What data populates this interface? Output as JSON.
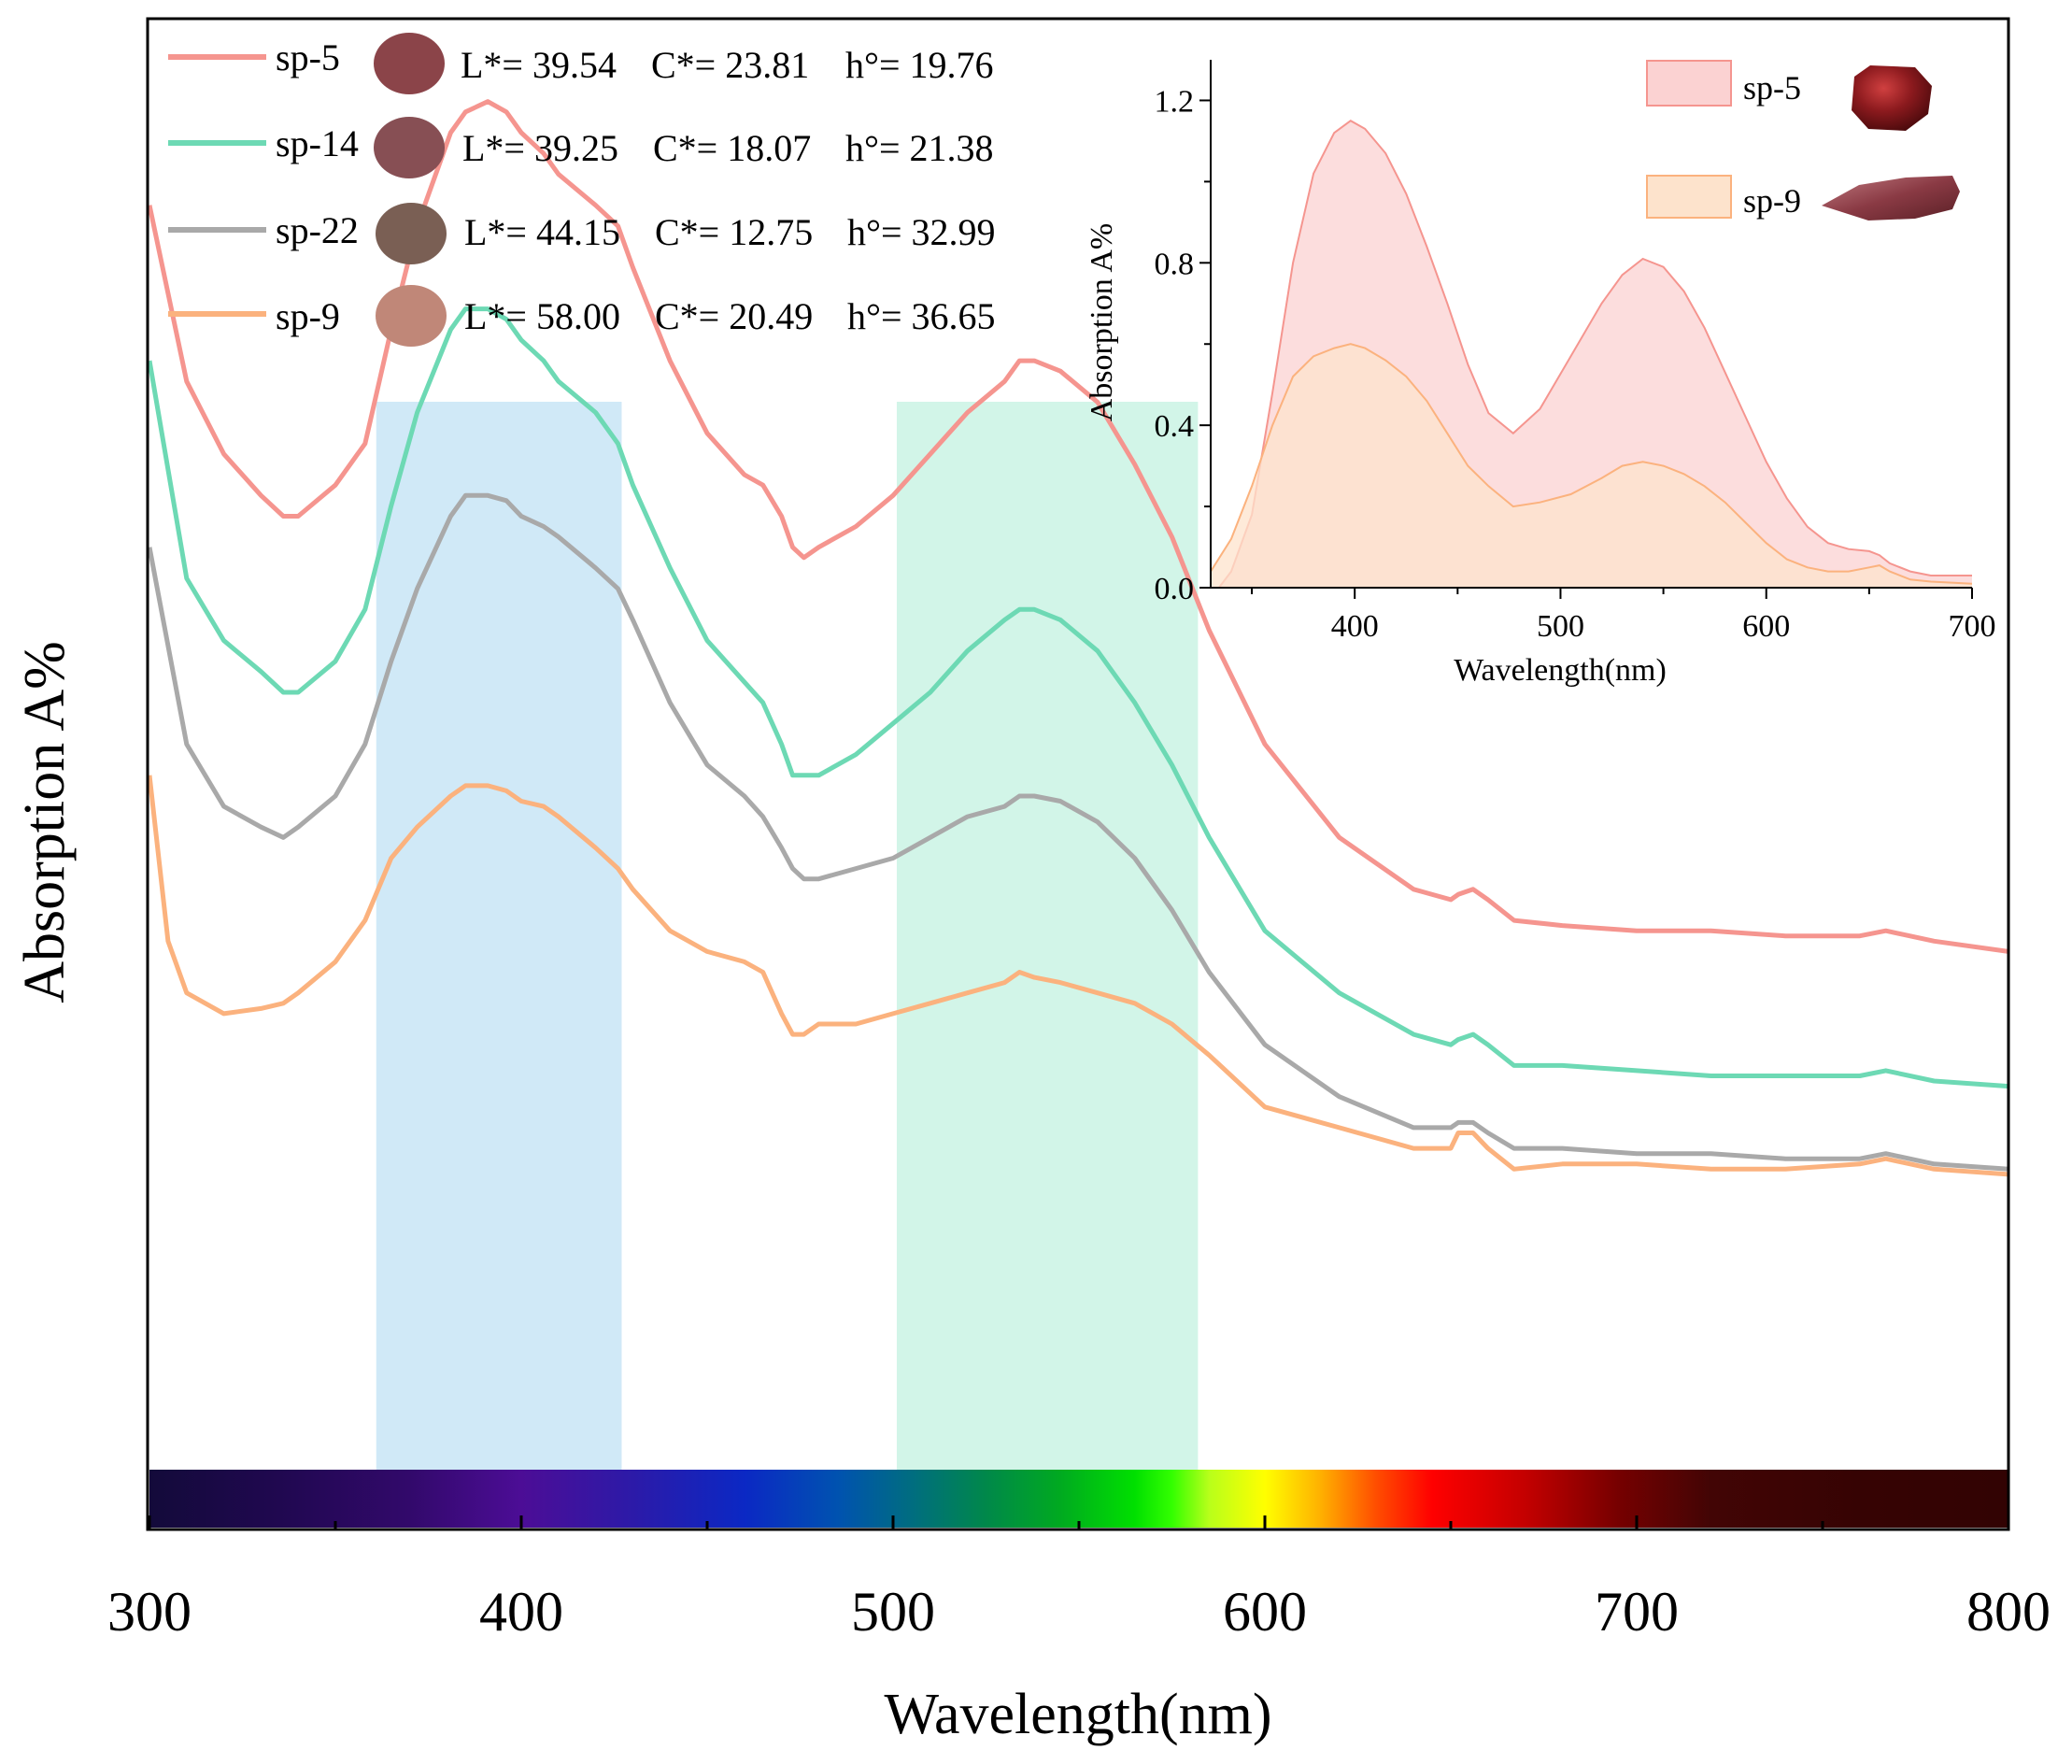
{
  "chart_data": [
    {
      "type": "line",
      "role": "main",
      "xlabel": "Wavelength(nm)",
      "ylabel": "Absorption A%",
      "xlim": [
        300,
        800
      ],
      "ylim": [
        0,
        1.4
      ],
      "x_ticks": [
        "300",
        "400",
        "500",
        "600",
        "700",
        "800"
      ],
      "y_ticks_shown": false,
      "highlight_bands": [
        {
          "name": "band-blue",
          "x0": 361,
          "x1": 427,
          "color": "#d0e9f7"
        },
        {
          "name": "band-green",
          "x0": 501,
          "x1": 582,
          "color": "#d2f5e8"
        }
      ],
      "spectrum_bar": {
        "range": [
          300,
          800
        ]
      },
      "legend": {
        "position": "top-left",
        "entries": [
          {
            "name": "sp-5",
            "color": "#f5958f",
            "swatch": "#8b4449",
            "L": "L*= 39.54",
            "C": "C*= 23.81",
            "h": "h°= 19.76"
          },
          {
            "name": "sp-14",
            "color": "#6dd9b4",
            "swatch": "#874f54",
            "L": "L*= 39.25",
            "C": "C*= 18.07",
            "h": "h°= 21.38"
          },
          {
            "name": "sp-22",
            "color": "#a9a9a9",
            "swatch": "#7a5f54",
            "L": "L*= 44.15",
            "C": "C*= 12.75",
            "h": "h°= 32.99"
          },
          {
            "name": "sp-9",
            "color": "#fbb27e",
            "swatch": "#c08778",
            "L": "L*= 58.00",
            "C": "C*= 20.49",
            "h": "h°= 36.65"
          }
        ]
      },
      "series": [
        {
          "name": "sp-5",
          "color": "#f5958f",
          "x": [
            300,
            310,
            320,
            330,
            336,
            340,
            350,
            358,
            365,
            372,
            381,
            385,
            391,
            396,
            400,
            406,
            410,
            420,
            426,
            430,
            440,
            450,
            460,
            465,
            470,
            473,
            476,
            480,
            490,
            500,
            510,
            520,
            530,
            534,
            538,
            545,
            555,
            565,
            575,
            585,
            600,
            620,
            640,
            650,
            652,
            656,
            660,
            667,
            680,
            700,
            720,
            740,
            760,
            767,
            780,
            800
          ],
          "y": [
            1.22,
            1.05,
            0.98,
            0.94,
            0.92,
            0.92,
            0.95,
            0.99,
            1.1,
            1.2,
            1.29,
            1.31,
            1.32,
            1.31,
            1.29,
            1.27,
            1.25,
            1.22,
            1.2,
            1.16,
            1.07,
            1.0,
            0.96,
            0.95,
            0.92,
            0.89,
            0.88,
            0.89,
            0.91,
            0.94,
            0.98,
            1.02,
            1.05,
            1.07,
            1.07,
            1.06,
            1.03,
            0.97,
            0.9,
            0.81,
            0.7,
            0.61,
            0.56,
            0.55,
            0.555,
            0.56,
            0.55,
            0.53,
            0.525,
            0.52,
            0.52,
            0.515,
            0.515,
            0.52,
            0.51,
            0.5
          ]
        },
        {
          "name": "sp-14",
          "color": "#6dd9b4",
          "x": [
            300,
            310,
            320,
            330,
            336,
            340,
            350,
            358,
            365,
            372,
            381,
            385,
            391,
            396,
            400,
            406,
            410,
            420,
            426,
            430,
            440,
            450,
            460,
            465,
            470,
            473,
            476,
            480,
            490,
            500,
            510,
            520,
            530,
            534,
            538,
            545,
            555,
            565,
            575,
            585,
            600,
            620,
            640,
            650,
            652,
            656,
            660,
            667,
            680,
            700,
            720,
            740,
            760,
            767,
            780,
            800
          ],
          "y": [
            1.07,
            0.86,
            0.8,
            0.77,
            0.75,
            0.75,
            0.78,
            0.83,
            0.93,
            1.02,
            1.1,
            1.12,
            1.12,
            1.11,
            1.09,
            1.07,
            1.05,
            1.02,
            0.99,
            0.95,
            0.87,
            0.8,
            0.76,
            0.74,
            0.7,
            0.67,
            0.67,
            0.67,
            0.69,
            0.72,
            0.75,
            0.79,
            0.82,
            0.83,
            0.83,
            0.82,
            0.79,
            0.74,
            0.68,
            0.61,
            0.52,
            0.46,
            0.42,
            0.41,
            0.415,
            0.42,
            0.41,
            0.39,
            0.39,
            0.385,
            0.38,
            0.38,
            0.38,
            0.385,
            0.375,
            0.37
          ]
        },
        {
          "name": "sp-22",
          "color": "#a9a9a9",
          "x": [
            300,
            310,
            320,
            330,
            336,
            340,
            350,
            358,
            365,
            372,
            381,
            385,
            391,
            396,
            400,
            406,
            410,
            420,
            426,
            430,
            440,
            450,
            460,
            465,
            470,
            473,
            476,
            480,
            490,
            500,
            510,
            520,
            530,
            534,
            538,
            545,
            555,
            565,
            575,
            585,
            600,
            620,
            640,
            650,
            652,
            656,
            660,
            667,
            680,
            700,
            720,
            740,
            760,
            767,
            780,
            800
          ],
          "y": [
            0.89,
            0.7,
            0.64,
            0.62,
            0.61,
            0.62,
            0.65,
            0.7,
            0.78,
            0.85,
            0.92,
            0.94,
            0.94,
            0.935,
            0.92,
            0.91,
            0.9,
            0.87,
            0.85,
            0.82,
            0.74,
            0.68,
            0.65,
            0.63,
            0.6,
            0.58,
            0.57,
            0.57,
            0.58,
            0.59,
            0.61,
            0.63,
            0.64,
            0.65,
            0.65,
            0.645,
            0.625,
            0.59,
            0.54,
            0.48,
            0.41,
            0.36,
            0.33,
            0.33,
            0.335,
            0.335,
            0.325,
            0.31,
            0.31,
            0.305,
            0.305,
            0.3,
            0.3,
            0.305,
            0.295,
            0.29
          ]
        },
        {
          "name": "sp-9",
          "color": "#fbb27e",
          "x": [
            300,
            305,
            310,
            320,
            330,
            336,
            340,
            350,
            358,
            365,
            372,
            381,
            385,
            391,
            396,
            400,
            406,
            410,
            420,
            426,
            430,
            440,
            450,
            460,
            465,
            470,
            473,
            476,
            480,
            490,
            500,
            510,
            520,
            530,
            534,
            538,
            545,
            555,
            565,
            575,
            585,
            600,
            620,
            640,
            650,
            652,
            656,
            660,
            667,
            680,
            700,
            720,
            740,
            760,
            767,
            780,
            800
          ],
          "y": [
            0.67,
            0.51,
            0.46,
            0.44,
            0.445,
            0.45,
            0.46,
            0.49,
            0.53,
            0.59,
            0.62,
            0.65,
            0.66,
            0.66,
            0.655,
            0.645,
            0.64,
            0.63,
            0.6,
            0.58,
            0.56,
            0.52,
            0.5,
            0.49,
            0.48,
            0.44,
            0.42,
            0.42,
            0.43,
            0.43,
            0.44,
            0.45,
            0.46,
            0.47,
            0.48,
            0.475,
            0.47,
            0.46,
            0.45,
            0.43,
            0.4,
            0.35,
            0.33,
            0.31,
            0.31,
            0.325,
            0.325,
            0.31,
            0.29,
            0.295,
            0.295,
            0.29,
            0.29,
            0.295,
            0.3,
            0.29,
            0.285
          ]
        }
      ]
    },
    {
      "type": "area",
      "role": "inset",
      "xlabel": "Wavelength(nm)",
      "ylabel": "Absorption A%",
      "xlim": [
        330,
        700
      ],
      "ylim": [
        0.0,
        1.3
      ],
      "x_ticks": [
        "400",
        "500",
        "600",
        "700"
      ],
      "y_ticks": [
        "0.0",
        "0.4",
        "0.8",
        "1.2"
      ],
      "legend": {
        "position": "top-right",
        "entries": [
          {
            "name": "sp-5",
            "color": "#f5958f",
            "fill": "#fbd2d2",
            "stone": "dark-red-stone"
          },
          {
            "name": "sp-9",
            "color": "#fbb27e",
            "fill": "#fde3cc",
            "stone": "pink-red-stone"
          }
        ]
      },
      "series": [
        {
          "name": "sp-5",
          "color": "#f5958f",
          "fill": "#fbd2d2",
          "x": [
            334,
            340,
            350,
            360,
            370,
            380,
            390,
            398,
            405,
            415,
            425,
            435,
            445,
            455,
            465,
            477,
            490,
            505,
            520,
            530,
            540,
            550,
            560,
            570,
            580,
            590,
            600,
            610,
            620,
            630,
            640,
            650,
            655,
            660,
            670,
            680,
            700
          ],
          "y": [
            0.0,
            0.04,
            0.18,
            0.48,
            0.8,
            1.02,
            1.12,
            1.15,
            1.13,
            1.07,
            0.97,
            0.84,
            0.7,
            0.55,
            0.43,
            0.38,
            0.44,
            0.57,
            0.7,
            0.77,
            0.81,
            0.79,
            0.73,
            0.64,
            0.53,
            0.42,
            0.31,
            0.22,
            0.15,
            0.11,
            0.095,
            0.09,
            0.08,
            0.06,
            0.04,
            0.03,
            0.03
          ]
        },
        {
          "name": "sp-9",
          "color": "#fbb27e",
          "fill": "#fde3cc",
          "x": [
            330,
            340,
            350,
            360,
            370,
            380,
            390,
            398,
            405,
            415,
            425,
            435,
            445,
            455,
            465,
            477,
            490,
            505,
            520,
            530,
            540,
            550,
            560,
            570,
            580,
            590,
            600,
            610,
            620,
            630,
            640,
            650,
            655,
            660,
            670,
            680,
            700
          ],
          "y": [
            0.04,
            0.12,
            0.25,
            0.4,
            0.52,
            0.57,
            0.59,
            0.6,
            0.59,
            0.56,
            0.52,
            0.46,
            0.38,
            0.3,
            0.25,
            0.2,
            0.21,
            0.23,
            0.27,
            0.3,
            0.31,
            0.3,
            0.28,
            0.25,
            0.21,
            0.16,
            0.11,
            0.07,
            0.05,
            0.04,
            0.04,
            0.05,
            0.055,
            0.04,
            0.02,
            0.015,
            0.01
          ]
        }
      ]
    }
  ]
}
